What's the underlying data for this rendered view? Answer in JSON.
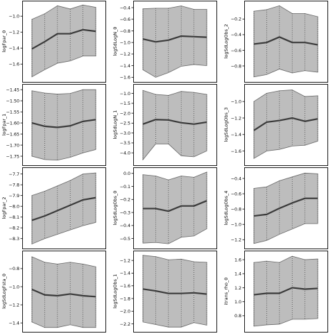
{
  "chart_data": [
    {
      "type": "line",
      "ylabel": "logFpar_0",
      "x": [
        1,
        2,
        3,
        4,
        5,
        6
      ],
      "mean": [
        -1.41,
        -1.32,
        -1.22,
        -1.22,
        -1.17,
        -1.19
      ],
      "lower": [
        -1.76,
        -1.67,
        -1.59,
        -1.56,
        -1.5,
        -1.5
      ],
      "upper": [
        -1.04,
        -0.97,
        -0.87,
        -0.91,
        -0.86,
        -0.89
      ],
      "ylim": [
        -1.78,
        -0.85
      ],
      "yticks": [
        -1.6,
        -1.4,
        -1.2,
        -1.0
      ],
      "ytick_labels": [
        "−1.6",
        "−1.4",
        "−1.2",
        "−1.0"
      ]
    },
    {
      "type": "line",
      "ylabel": "logSdLogN_0",
      "x": [
        1,
        2,
        3,
        4,
        5,
        6
      ],
      "mean": [
        -0.94,
        -0.99,
        -0.96,
        -0.89,
        -0.9,
        -0.91
      ],
      "lower": [
        -1.47,
        -1.6,
        -1.52,
        -1.41,
        -1.38,
        -1.4
      ],
      "upper": [
        -0.42,
        -0.41,
        -0.41,
        -0.37,
        -0.43,
        -0.43
      ],
      "ylim": [
        -1.62,
        -0.34
      ],
      "yticks": [
        -1.6,
        -1.4,
        -1.2,
        -1.0,
        -0.8,
        -0.6,
        -0.4
      ],
      "ytick_labels": [
        "−1.6",
        "−1.4",
        "−1.2",
        "−1.0",
        "−0.8",
        "−0.6",
        "−0.4"
      ]
    },
    {
      "type": "line",
      "ylabel": "logSdLogObs_2",
      "x": [
        1,
        2,
        3,
        4,
        5,
        6
      ],
      "mean": [
        -0.52,
        -0.5,
        -0.43,
        -0.5,
        -0.5,
        -0.53
      ],
      "lower": [
        -0.94,
        -0.91,
        -0.84,
        -0.89,
        -0.86,
        -0.88
      ],
      "upper": [
        -0.1,
        -0.08,
        -0.03,
        -0.13,
        -0.13,
        -0.17
      ],
      "ylim": [
        -0.96,
        -0.01
      ],
      "yticks": [
        -0.8,
        -0.6,
        -0.4,
        -0.2
      ],
      "ytick_labels": [
        "−0.8",
        "−0.6",
        "−0.4",
        "−0.2"
      ]
    },
    {
      "type": "line",
      "ylabel": "logFpar_1",
      "x": [
        1,
        2,
        3,
        4,
        5,
        6
      ],
      "mean": [
        -1.6,
        -1.615,
        -1.62,
        -1.613,
        -1.593,
        -1.585
      ],
      "lower": [
        -1.75,
        -1.765,
        -1.768,
        -1.755,
        -1.735,
        -1.72
      ],
      "upper": [
        -1.455,
        -1.465,
        -1.47,
        -1.467,
        -1.45,
        -1.45
      ],
      "ylim": [
        -1.775,
        -1.44
      ],
      "yticks": [
        -1.75,
        -1.7,
        -1.65,
        -1.6,
        -1.55,
        -1.5,
        -1.45
      ],
      "ytick_labels": [
        "−1.75",
        "−1.70",
        "−1.65",
        "−1.60",
        "−1.55",
        "−1.50",
        "−1.45"
      ]
    },
    {
      "type": "line",
      "ylabel": "logSdLogN_1",
      "x": [
        1,
        2,
        3,
        4,
        5,
        6
      ],
      "mean": [
        -2.55,
        -2.32,
        -2.34,
        -2.48,
        -2.55,
        -2.45
      ],
      "lower": [
        -4.35,
        -3.55,
        -3.55,
        -4.15,
        -4.2,
        -3.9
      ],
      "upper": [
        -0.85,
        -1.05,
        -1.1,
        -0.9,
        -0.95,
        -1.05
      ],
      "ylim": [
        -4.45,
        -0.7
      ],
      "yticks": [
        -4.0,
        -3.5,
        -3.0,
        -2.5,
        -2.0,
        -1.5,
        -1.0
      ],
      "ytick_labels": [
        "−4.0",
        "−3.5",
        "−3.0",
        "−2.5",
        "−2.0",
        "−1.5",
        "−1.0"
      ]
    },
    {
      "type": "line",
      "ylabel": "logSdLogObs_3",
      "x": [
        1,
        2,
        3,
        4,
        5,
        6
      ],
      "mean": [
        -1.35,
        -1.25,
        -1.23,
        -1.2,
        -1.24,
        -1.21
      ],
      "lower": [
        -1.69,
        -1.6,
        -1.58,
        -1.54,
        -1.53,
        -1.48
      ],
      "upper": [
        -1.0,
        -0.9,
        -0.87,
        -0.86,
        -0.94,
        -0.93
      ],
      "ylim": [
        -1.73,
        -0.83
      ],
      "yticks": [
        -1.6,
        -1.4,
        -1.2,
        -1.0
      ],
      "ytick_labels": [
        "−1.6",
        "−1.4",
        "−1.2",
        "−1.0"
      ]
    },
    {
      "type": "line",
      "ylabel": "logFpar_2",
      "x": [
        1,
        2,
        3,
        4,
        5,
        6
      ],
      "mean": [
        -8.13,
        -8.09,
        -8.04,
        -7.99,
        -7.94,
        -7.92
      ],
      "lower": [
        -8.35,
        -8.3,
        -8.26,
        -8.22,
        -8.18,
        -8.15
      ],
      "upper": [
        -7.9,
        -7.86,
        -7.81,
        -7.76,
        -7.7,
        -7.69
      ],
      "ylim": [
        -8.36,
        -7.67
      ],
      "yticks": [
        -8.3,
        -8.2,
        -8.1,
        -8.0,
        -7.9,
        -7.8,
        -7.7
      ],
      "ytick_labels": [
        "−8.3",
        "−8.2",
        "−8.1",
        "−8.0",
        "−7.9",
        "−7.8",
        "−7.7"
      ]
    },
    {
      "type": "line",
      "ylabel": "logSdLogObs_0",
      "x": [
        1,
        2,
        3,
        4,
        5,
        6
      ],
      "mean": [
        -0.27,
        -0.27,
        -0.29,
        -0.25,
        -0.25,
        -0.21
      ],
      "lower": [
        -0.535,
        -0.53,
        -0.54,
        -0.49,
        -0.48,
        -0.425
      ],
      "upper": [
        -0.01,
        -0.02,
        -0.05,
        -0.02,
        -0.03,
        0.01
      ],
      "ylim": [
        -0.55,
        0.02
      ],
      "yticks": [
        -0.5,
        -0.4,
        -0.3,
        -0.2,
        -0.1,
        0.0
      ],
      "ytick_labels": [
        "−0.5",
        "−0.4",
        "−0.3",
        "−0.2",
        "−0.1",
        "0.0"
      ]
    },
    {
      "type": "line",
      "ylabel": "logSdLogObs_4",
      "x": [
        1,
        2,
        3,
        4,
        5,
        6
      ],
      "mean": [
        -0.89,
        -0.87,
        -0.79,
        -0.72,
        -0.66,
        -0.66
      ],
      "lower": [
        -1.25,
        -1.21,
        -1.13,
        -1.06,
        -0.99,
        -0.99
      ],
      "upper": [
        -0.53,
        -0.51,
        -0.43,
        -0.38,
        -0.33,
        -0.34
      ],
      "ylim": [
        -1.27,
        -0.3
      ],
      "yticks": [
        -1.2,
        -1.0,
        -0.8,
        -0.6,
        -0.4
      ],
      "ytick_labels": [
        "−1.2",
        "−1.0",
        "−0.8",
        "−0.6",
        "−0.4"
      ]
    },
    {
      "type": "line",
      "ylabel": "logSdLogFsta_0",
      "x": [
        1,
        2,
        3,
        4,
        5,
        6
      ],
      "mean": [
        -1.03,
        -1.09,
        -1.1,
        -1.08,
        -1.1,
        -1.11
      ],
      "lower": [
        -1.39,
        -1.45,
        -1.45,
        -1.42,
        -1.45,
        -1.45
      ],
      "upper": [
        -0.67,
        -0.73,
        -0.75,
        -0.73,
        -0.75,
        -0.78
      ],
      "ylim": [
        -1.46,
        -0.64
      ],
      "yticks": [
        -1.4,
        -1.2,
        -1.0,
        -0.8
      ],
      "ytick_labels": [
        "−1.4",
        "−1.2",
        "−1.0",
        "−0.8"
      ]
    },
    {
      "type": "line",
      "ylabel": "logSdLogObs_1",
      "x": [
        1,
        2,
        3,
        4,
        5,
        6
      ],
      "mean": [
        -1.65,
        -1.68,
        -1.72,
        -1.72,
        -1.71,
        -1.73
      ],
      "lower": [
        -2.17,
        -2.21,
        -2.25,
        -2.25,
        -2.18,
        -2.22
      ],
      "upper": [
        -1.12,
        -1.14,
        -1.19,
        -1.18,
        -1.22,
        -1.23
      ],
      "ylim": [
        -2.27,
        -1.1
      ],
      "yticks": [
        -2.2,
        -2.0,
        -1.8,
        -1.6,
        -1.4,
        -1.2
      ],
      "ytick_labels": [
        "−2.2",
        "−2.0",
        "−1.8",
        "−1.6",
        "−1.4",
        "−1.2"
      ]
    },
    {
      "type": "line",
      "ylabel": "itrans_rho_0",
      "x": [
        1,
        2,
        3,
        4,
        5,
        6
      ],
      "mean": [
        1.1,
        1.12,
        1.12,
        1.2,
        1.18,
        1.19
      ],
      "lower": [
        0.65,
        0.67,
        0.68,
        0.75,
        0.75,
        0.76
      ],
      "upper": [
        1.56,
        1.58,
        1.56,
        1.65,
        1.6,
        1.61
      ],
      "ylim": [
        0.62,
        1.68
      ],
      "yticks": [
        0.8,
        1.0,
        1.2,
        1.4,
        1.6
      ],
      "ytick_labels": [
        "0.8",
        "1.0",
        "1.2",
        "1.4",
        "1.6"
      ]
    }
  ]
}
